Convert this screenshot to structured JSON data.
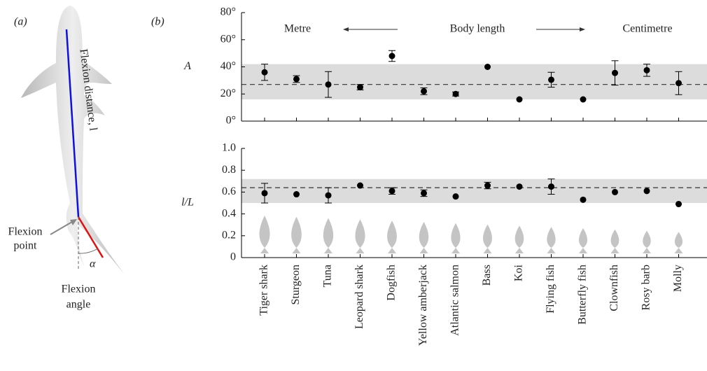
{
  "panel_labels": [
    "(a)",
    "(b)"
  ],
  "diagram": {
    "flexion_distance": "Flexion distance, l",
    "flexion_point_1": "Flexion",
    "flexion_point_2": "point",
    "flexion_angle_1": "Flexion",
    "flexion_angle_2": "angle",
    "angle_symbol": "α"
  },
  "chart_data": [
    {
      "type": "errorbar",
      "ylabel": "A",
      "annotations": [
        "Metre",
        "Body length",
        "Centimetre"
      ],
      "values": [
        36,
        31,
        27,
        25,
        48,
        22,
        20,
        40,
        16,
        30.5,
        16,
        35.5,
        37.5,
        28
      ],
      "errors": [
        6,
        2.5,
        9.5,
        2,
        4,
        2.5,
        1.5,
        null,
        null,
        5.5,
        null,
        9,
        4.5,
        8.5
      ],
      "color": "#000000",
      "band": [
        16,
        42
      ],
      "band_color": "#dcdcdc",
      "mean": 27,
      "ylim": [
        0,
        80
      ],
      "yticks": [
        {
          "value": 0,
          "label": "0°"
        },
        {
          "value": 20,
          "label": "20°"
        },
        {
          "value": 40,
          "label": "40°"
        },
        {
          "value": 60,
          "label": "60°"
        },
        {
          "value": 80,
          "label": "80°"
        }
      ]
    },
    {
      "type": "errorbar",
      "ylabel": "l/L",
      "categories": [
        "Tiger shark",
        "Sturgeon",
        "Tuna",
        "Leopard shark",
        "Dogfish",
        "Yellow amberjack",
        "Atlantic salmon",
        "Bass",
        "Koi",
        "Flying fish",
        "Butterfly fish",
        "Clownfish",
        "Rosy barb",
        "Molly"
      ],
      "values": [
        0.59,
        0.58,
        0.57,
        0.66,
        0.61,
        0.59,
        0.56,
        0.66,
        0.65,
        0.65,
        0.53,
        0.6,
        0.61,
        0.49
      ],
      "errors": [
        0.09,
        null,
        0.07,
        null,
        0.03,
        0.03,
        null,
        0.03,
        null,
        0.07,
        null,
        null,
        null,
        null
      ],
      "color": "#000000",
      "band": [
        0.5,
        0.72
      ],
      "band_color": "#dcdcdc",
      "mean": 0.64,
      "ylim": [
        0,
        1
      ],
      "yticks": [
        0,
        0.2,
        0.4,
        0.6,
        0.8,
        {
          "value": 1,
          "label": "1.0"
        }
      ]
    }
  ]
}
